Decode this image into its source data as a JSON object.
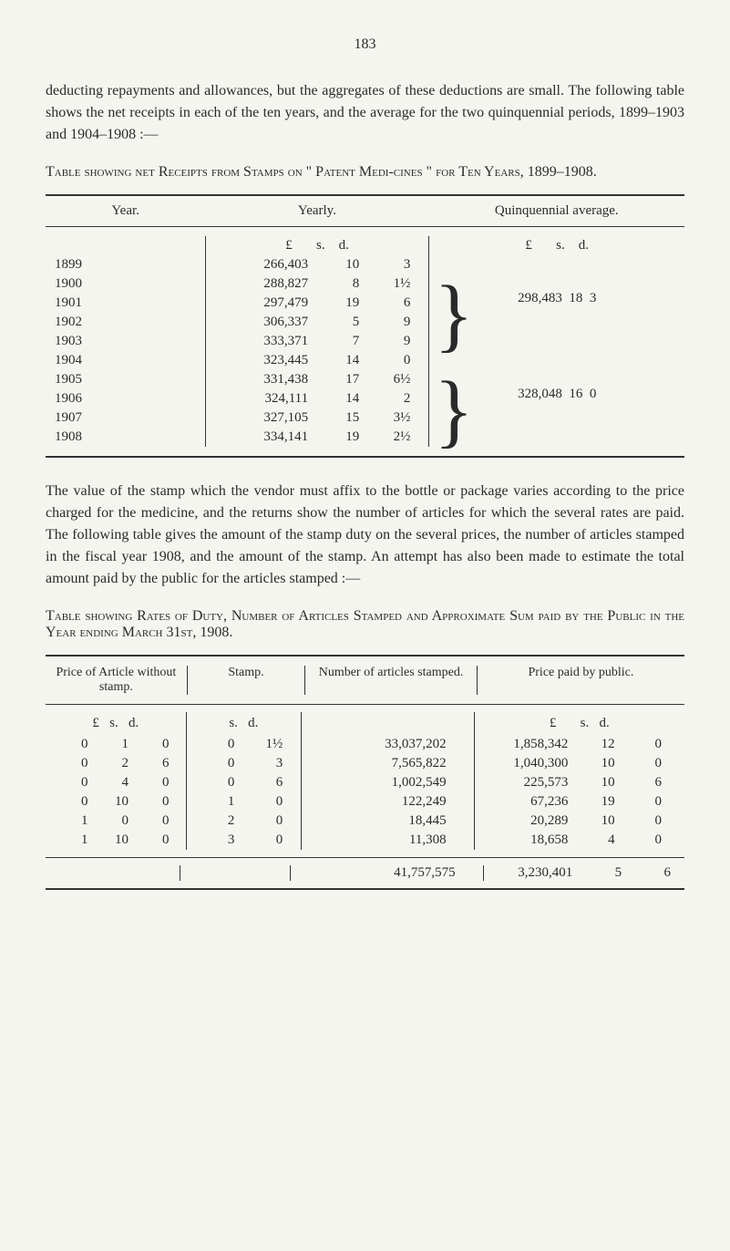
{
  "page_number": "183",
  "paragraph1": "deducting repayments and allowances, but the aggregates of these deductions are small. The following table shows the net receipts in each of the ten years, and the average for the two quinquennial periods, 1899–1903 and 1904–1908 :—",
  "table1": {
    "title": "Table showing net Receipts from Stamps on \" Patent Medi-cines \" for Ten Years, 1899–1908.",
    "headers": {
      "col1": "Year.",
      "col2": "Yearly.",
      "col3": "Quinquennial average."
    },
    "currency_labels": {
      "pounds": "£",
      "shillings": "s.",
      "pence": "d."
    },
    "years": [
      "1899",
      "1900",
      "1901",
      "1902",
      "1903",
      "1904",
      "1905",
      "1906",
      "1907",
      "1908"
    ],
    "yearly": [
      {
        "p": "266,403",
        "s": "10",
        "d": "3"
      },
      {
        "p": "288,827",
        "s": "8",
        "d": "1½"
      },
      {
        "p": "297,479",
        "s": "19",
        "d": "6"
      },
      {
        "p": "306,337",
        "s": "5",
        "d": "9"
      },
      {
        "p": "333,371",
        "s": "7",
        "d": "9"
      },
      {
        "p": "323,445",
        "s": "14",
        "d": "0"
      },
      {
        "p": "331,438",
        "s": "17",
        "d": "6½"
      },
      {
        "p": "324,111",
        "s": "14",
        "d": "2"
      },
      {
        "p": "327,105",
        "s": "15",
        "d": "3½"
      },
      {
        "p": "334,141",
        "s": "19",
        "d": "2½"
      }
    ],
    "averages": [
      {
        "p": "298,483",
        "s": "18",
        "d": "3"
      },
      {
        "p": "328,048",
        "s": "16",
        "d": "0"
      }
    ]
  },
  "paragraph2": "The value of the stamp which the vendor must affix to the bottle or package varies according to the price charged for the medicine, and the returns show the number of articles for which the several rates are paid. The following table gives the amount of the stamp duty on the several prices, the number of articles stamped in the fiscal year 1908, and the amount of the stamp. An attempt has also been made to estimate the total amount paid by the public for the articles stamped :—",
  "table2": {
    "title": "Table showing Rates of Duty, Number of Articles Stamped and Approximate Sum paid by the Public in the Year ending March 31st, 1908.",
    "headers": {
      "col1": "Price of Article without stamp.",
      "col2": "Stamp.",
      "col3": "Number of articles stamped.",
      "col4": "Price paid by public."
    },
    "currency_labels": {
      "pounds": "£",
      "shillings": "s.",
      "pence": "d."
    },
    "rows": [
      {
        "price": {
          "p": "0",
          "s": "1",
          "d": "0"
        },
        "stamp": {
          "s": "0",
          "d": "1½"
        },
        "num": "33,037,202",
        "paid": {
          "p": "1,858,342",
          "s": "12",
          "d": "0"
        }
      },
      {
        "price": {
          "p": "0",
          "s": "2",
          "d": "6"
        },
        "stamp": {
          "s": "0",
          "d": "3"
        },
        "num": "7,565,822",
        "paid": {
          "p": "1,040,300",
          "s": "10",
          "d": "0"
        }
      },
      {
        "price": {
          "p": "0",
          "s": "4",
          "d": "0"
        },
        "stamp": {
          "s": "0",
          "d": "6"
        },
        "num": "1,002,549",
        "paid": {
          "p": "225,573",
          "s": "10",
          "d": "6"
        }
      },
      {
        "price": {
          "p": "0",
          "s": "10",
          "d": "0"
        },
        "stamp": {
          "s": "1",
          "d": "0"
        },
        "num": "122,249",
        "paid": {
          "p": "67,236",
          "s": "19",
          "d": "0"
        }
      },
      {
        "price": {
          "p": "1",
          "s": "0",
          "d": "0"
        },
        "stamp": {
          "s": "2",
          "d": "0"
        },
        "num": "18,445",
        "paid": {
          "p": "20,289",
          "s": "10",
          "d": "0"
        }
      },
      {
        "price": {
          "p": "1",
          "s": "10",
          "d": "0"
        },
        "stamp": {
          "s": "3",
          "d": "0"
        },
        "num": "11,308",
        "paid": {
          "p": "18,658",
          "s": "4",
          "d": "0"
        }
      }
    ],
    "totals": {
      "num": "41,757,575",
      "paid": {
        "p": "3,230,401",
        "s": "5",
        "d": "6"
      }
    }
  }
}
